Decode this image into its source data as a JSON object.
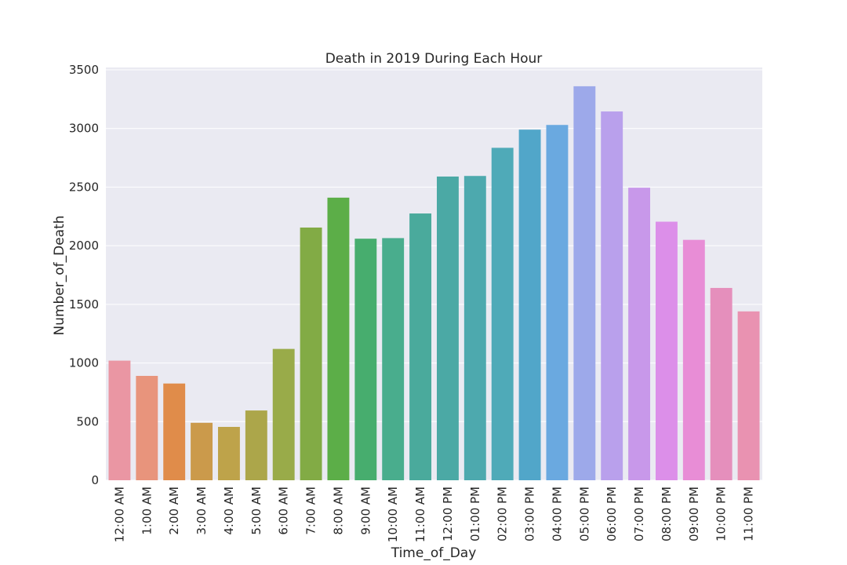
{
  "chart_data": {
    "type": "bar",
    "title": "Death in 2019 During Each Hour",
    "xlabel": "Time_of_Day",
    "ylabel": "Number_of_Death",
    "ylim": [
      0,
      3520
    ],
    "yticks": [
      "0",
      "500",
      "1000",
      "1500",
      "2000",
      "2500",
      "3000",
      "3500"
    ],
    "grid": true,
    "plot_background": "#eaeaf2",
    "grid_color": "#ffffff",
    "categories": [
      "12:00 AM",
      "1:00 AM",
      "2:00 AM",
      "3:00 AM",
      "4:00 AM",
      "5:00 AM",
      "6:00 AM",
      "7:00 AM",
      "8:00 AM",
      "9:00 AM",
      "10:00 AM",
      "11:00 AM",
      "12:00 PM",
      "01:00 PM",
      "02:00 PM",
      "03:00 PM",
      "04:00 PM",
      "05:00 PM",
      "06:00 PM",
      "07:00 PM",
      "08:00 PM",
      "09:00 PM",
      "10:00 PM",
      "11:00 PM"
    ],
    "values": [
      1020,
      890,
      825,
      490,
      455,
      595,
      1120,
      2155,
      2410,
      2060,
      2065,
      2275,
      2590,
      2595,
      2835,
      2990,
      3030,
      3360,
      3145,
      2495,
      2205,
      2050,
      1640,
      1440
    ],
    "colors": [
      "#ea96a3",
      "#e8947c",
      "#e08c4a",
      "#cb9a4b",
      "#bea34a",
      "#aca64a",
      "#99ab49",
      "#82ab45",
      "#5cae48",
      "#47ad6e",
      "#49ad8d",
      "#4aaa9c",
      "#4ba9a5",
      "#4da9ae",
      "#4faab8",
      "#51a6c9",
      "#6aa9e0",
      "#9da9ea",
      "#b9a0ec",
      "#c898ea",
      "#dc8fe9",
      "#e88dd6",
      "#e58fbc",
      "#e992b1"
    ]
  }
}
